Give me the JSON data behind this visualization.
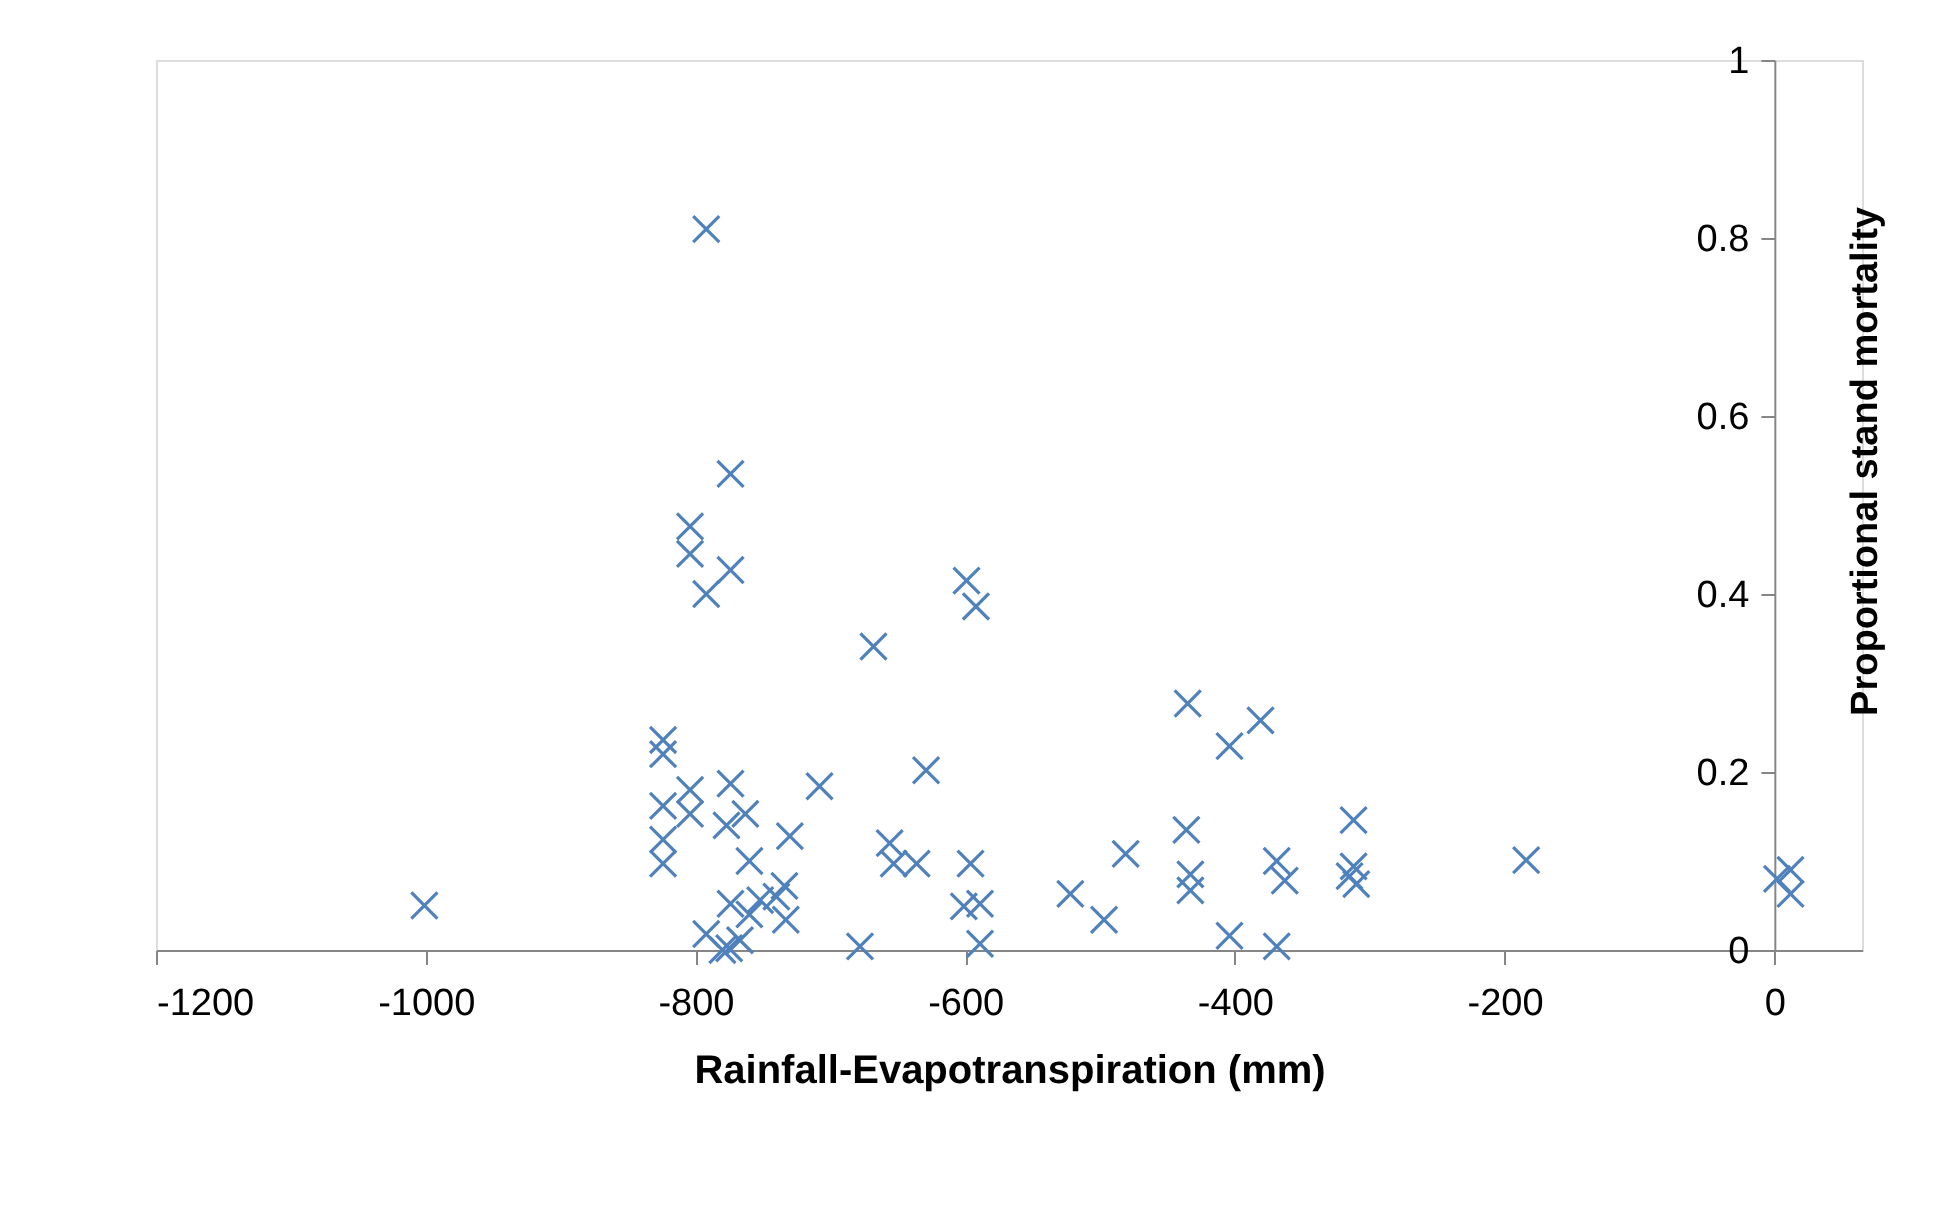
{
  "chart_data": {
    "type": "scatter",
    "xlabel": "Rainfall-Evapotranspiration  (mm)",
    "ylabel": "Proportional stand mortality",
    "xlim": [
      -1200,
      65
    ],
    "ylim": [
      0,
      1
    ],
    "xticks": [
      -1200,
      -1000,
      -800,
      -600,
      -400,
      -200,
      0
    ],
    "yticks": [
      0,
      0.2,
      0.4,
      0.6,
      0.8,
      1
    ],
    "marker": "cross",
    "grid": false,
    "series": [
      {
        "color": "#4f81bd",
        "x": [
          -1001,
          -792,
          -774,
          -804,
          -804,
          -774,
          -792,
          -668,
          -599,
          -592,
          -629,
          -435,
          -381,
          -404,
          -824,
          -824,
          -824,
          -824,
          -824,
          -804,
          -804,
          -774,
          -777,
          -763,
          -760,
          -730,
          -734,
          -733,
          -752,
          -792,
          -774,
          -767,
          -760,
          -678,
          -708,
          -740,
          -656,
          -636,
          -653,
          -596,
          -601,
          -589,
          -589,
          -481,
          -436,
          -433,
          -433,
          -369,
          -363,
          -404,
          -369,
          -522,
          -497,
          -312,
          -312,
          -315,
          -310,
          -184,
          12,
          12,
          2,
          -780,
          -775
        ],
        "values": [
          0.05,
          0.81,
          0.535,
          0.476,
          0.445,
          0.427,
          0.4,
          0.341,
          0.415,
          0.386,
          0.202,
          0.277,
          0.258,
          0.229,
          0.236,
          0.22,
          0.162,
          0.124,
          0.097,
          0.18,
          0.153,
          0.187,
          0.14,
          0.153,
          0.1,
          0.128,
          0.072,
          0.034,
          0.056,
          0.018,
          0.052,
          0.011,
          0.04,
          0.004,
          0.184,
          0.06,
          0.12,
          0.097,
          0.097,
          0.097,
          0.049,
          0.052,
          0.007,
          0.108,
          0.135,
          0.085,
          0.067,
          0.1,
          0.078,
          0.016,
          0.004,
          0.063,
          0.034,
          0.146,
          0.094,
          0.083,
          0.074,
          0.101,
          0.09,
          0.063,
          0.08,
          0.0,
          0.002
        ]
      }
    ]
  }
}
